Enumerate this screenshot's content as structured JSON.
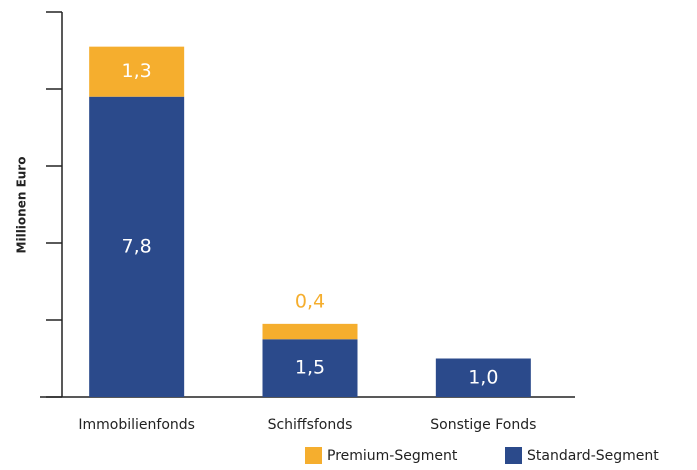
{
  "chart_data": {
    "type": "stacked_bar",
    "ylabel": "Millionen Euro",
    "categories": [
      "Immobilienfonds",
      "Schiffsfonds",
      "Sonstige Fonds"
    ],
    "series": [
      {
        "name": "Standard-Segment",
        "color": "#2b4a8b",
        "values": [
          7.8,
          1.5,
          1.0
        ],
        "value_labels": [
          "7,8",
          "1,5",
          "1,0"
        ]
      },
      {
        "name": "Premium-Segment",
        "color": "#f5ae2e",
        "values": [
          1.3,
          0.4,
          null
        ],
        "value_labels": [
          "1,3",
          "0,4",
          null
        ]
      }
    ],
    "ylim": [
      0,
      10
    ],
    "yticks": [
      0,
      2,
      4,
      6,
      8,
      10
    ],
    "grid": false,
    "legend": "bottom-right"
  }
}
